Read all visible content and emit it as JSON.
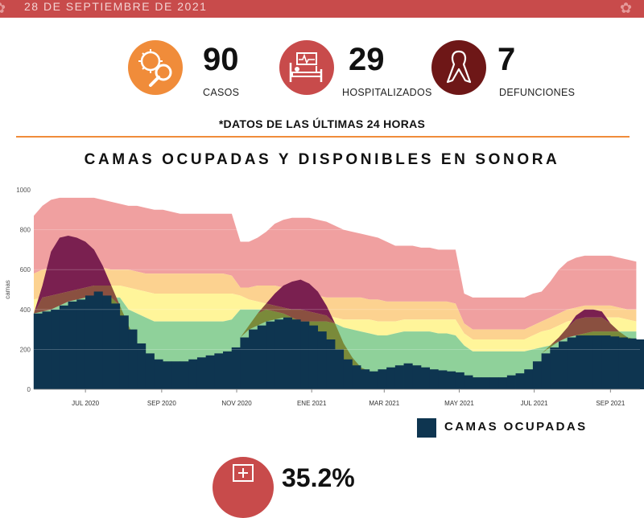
{
  "header": {
    "date": "28 DE SEPTIEMBRE DE 2021",
    "bar_color": "#c84b4b"
  },
  "stats": [
    {
      "value": "90",
      "label": "CASOS",
      "icon": "virus-magnifier-icon",
      "color": "#f08c3a"
    },
    {
      "value": "29",
      "label": "HOSPITALIZADOS",
      "icon": "hospital-bed-icon",
      "color": "#c84b4b"
    },
    {
      "value": "7",
      "label": "DEFUNCIONES",
      "icon": "ribbon-icon",
      "color": "#6e1717"
    }
  ],
  "note": "*DATOS DE LAS ÚLTIMAS 24 HORAS",
  "bottom": {
    "value": "35.2%",
    "icon": "hospital-icon"
  },
  "chart_data": {
    "type": "area",
    "title": "CAMAS OCUPADAS Y DISPONIBLES EN SONORA",
    "ylabel": "camas",
    "ylim": [
      0,
      1000
    ],
    "yticks": [
      0,
      200,
      400,
      600,
      800,
      1000
    ],
    "xlim": [
      "2020-05-20",
      "2021-09-25"
    ],
    "xticks": [
      {
        "date": "2020-07-01",
        "label": "JUL 2020"
      },
      {
        "date": "2020-09-01",
        "label": "SEP 2020"
      },
      {
        "date": "2020-11-01",
        "label": "NOV 2020"
      },
      {
        "date": "2021-01-01",
        "label": "ENE 2021"
      },
      {
        "date": "2021-03-01",
        "label": "MAR 2021"
      },
      {
        "date": "2021-05-01",
        "label": "MAY 2021"
      },
      {
        "date": "2021-07-01",
        "label": "JUL 2021"
      },
      {
        "date": "2021-09-01",
        "label": "SEP 2021"
      }
    ],
    "legend": [
      {
        "name": "CAMAS OCUPADAS",
        "color": "#0e3550"
      }
    ],
    "band_colors": [
      "#8fd19a",
      "#fff59a",
      "#fcd290",
      "#f0a0a0"
    ],
    "overlay_colors": [
      "#7a8a3a",
      "#8a5040",
      "#7a2050"
    ],
    "x": [
      "2020-05-20",
      "2020-05-27",
      "2020-06-03",
      "2020-06-10",
      "2020-06-17",
      "2020-06-24",
      "2020-07-01",
      "2020-07-08",
      "2020-07-15",
      "2020-07-22",
      "2020-07-29",
      "2020-08-05",
      "2020-08-12",
      "2020-08-19",
      "2020-08-26",
      "2020-09-02",
      "2020-09-09",
      "2020-09-16",
      "2020-09-23",
      "2020-09-30",
      "2020-10-07",
      "2020-10-14",
      "2020-10-21",
      "2020-10-28",
      "2020-11-04",
      "2020-11-11",
      "2020-11-18",
      "2020-11-25",
      "2020-12-02",
      "2020-12-09",
      "2020-12-16",
      "2020-12-23",
      "2020-12-30",
      "2021-01-06",
      "2021-01-13",
      "2021-01-20",
      "2021-01-27",
      "2021-02-03",
      "2021-02-10",
      "2021-02-17",
      "2021-02-24",
      "2021-03-03",
      "2021-03-10",
      "2021-03-17",
      "2021-03-24",
      "2021-03-31",
      "2021-04-07",
      "2021-04-14",
      "2021-04-21",
      "2021-04-28",
      "2021-05-05",
      "2021-05-12",
      "2021-05-19",
      "2021-05-26",
      "2021-06-02",
      "2021-06-09",
      "2021-06-16",
      "2021-06-23",
      "2021-06-30",
      "2021-07-07",
      "2021-07-14",
      "2021-07-21",
      "2021-07-28",
      "2021-08-04",
      "2021-08-11",
      "2021-08-18",
      "2021-08-25",
      "2021-09-01",
      "2021-09-08",
      "2021-09-15",
      "2021-09-22"
    ],
    "ocupadas": [
      380,
      390,
      400,
      420,
      440,
      450,
      470,
      490,
      470,
      430,
      370,
      300,
      230,
      180,
      150,
      140,
      140,
      140,
      150,
      160,
      170,
      180,
      190,
      210,
      260,
      300,
      320,
      340,
      350,
      360,
      350,
      340,
      320,
      290,
      250,
      200,
      150,
      120,
      100,
      90,
      100,
      110,
      120,
      130,
      120,
      110,
      100,
      95,
      90,
      85,
      70,
      60,
      60,
      60,
      60,
      70,
      80,
      100,
      140,
      180,
      210,
      240,
      260,
      270,
      270,
      270,
      270,
      265,
      260,
      255,
      250
    ],
    "green": [
      380,
      390,
      400,
      420,
      440,
      450,
      460,
      460,
      460,
      460,
      460,
      400,
      380,
      360,
      340,
      340,
      340,
      340,
      340,
      340,
      340,
      340,
      340,
      350,
      400,
      400,
      400,
      400,
      390,
      380,
      360,
      340,
      340,
      340,
      340,
      330,
      310,
      300,
      290,
      280,
      270,
      270,
      280,
      290,
      290,
      290,
      290,
      280,
      280,
      270,
      220,
      190,
      190,
      190,
      190,
      190,
      190,
      190,
      200,
      210,
      220,
      240,
      260,
      270,
      280,
      290,
      290,
      290,
      290,
      290,
      290
    ],
    "yellow": [
      450,
      460,
      470,
      480,
      490,
      500,
      510,
      520,
      520,
      520,
      520,
      510,
      500,
      490,
      480,
      480,
      480,
      480,
      480,
      480,
      480,
      480,
      480,
      480,
      470,
      450,
      440,
      430,
      420,
      410,
      400,
      400,
      390,
      380,
      370,
      360,
      350,
      350,
      350,
      350,
      340,
      340,
      340,
      350,
      350,
      350,
      350,
      350,
      350,
      350,
      280,
      250,
      250,
      250,
      250,
      250,
      250,
      250,
      270,
      290,
      300,
      320,
      340,
      350,
      360,
      360,
      360,
      360,
      360,
      350,
      340
    ],
    "orange": [
      580,
      600,
      610,
      620,
      620,
      620,
      620,
      620,
      610,
      600,
      600,
      600,
      590,
      580,
      580,
      580,
      580,
      580,
      580,
      580,
      580,
      580,
      580,
      570,
      510,
      510,
      520,
      520,
      520,
      510,
      500,
      490,
      480,
      470,
      460,
      460,
      460,
      460,
      460,
      450,
      450,
      440,
      440,
      440,
      440,
      440,
      440,
      440,
      440,
      430,
      330,
      300,
      300,
      300,
      300,
      300,
      300,
      300,
      320,
      340,
      360,
      380,
      400,
      410,
      420,
      420,
      420,
      420,
      410,
      400,
      400
    ],
    "total": [
      870,
      920,
      950,
      960,
      960,
      960,
      960,
      960,
      950,
      940,
      930,
      920,
      920,
      910,
      900,
      900,
      890,
      880,
      880,
      880,
      880,
      880,
      880,
      880,
      740,
      740,
      760,
      790,
      830,
      850,
      860,
      860,
      860,
      850,
      840,
      820,
      800,
      790,
      780,
      770,
      760,
      740,
      720,
      720,
      720,
      710,
      710,
      700,
      700,
      700,
      480,
      460,
      460,
      460,
      460,
      460,
      460,
      460,
      480,
      490,
      540,
      600,
      640,
      660,
      670,
      670,
      670,
      670,
      660,
      650,
      640
    ],
    "overlay_top": [
      380,
      520,
      690,
      760,
      770,
      760,
      740,
      700,
      620,
      520,
      420,
      320,
      230,
      180,
      150,
      140,
      140,
      140,
      150,
      160,
      170,
      180,
      190,
      210,
      260,
      320,
      380,
      430,
      480,
      520,
      540,
      550,
      530,
      490,
      420,
      330,
      230,
      160,
      110,
      90,
      100,
      110,
      120,
      130,
      120,
      110,
      100,
      95,
      90,
      85,
      70,
      60,
      60,
      60,
      60,
      70,
      80,
      100,
      140,
      180,
      220,
      260,
      310,
      370,
      400,
      400,
      390,
      330,
      290,
      260,
      250
    ]
  }
}
